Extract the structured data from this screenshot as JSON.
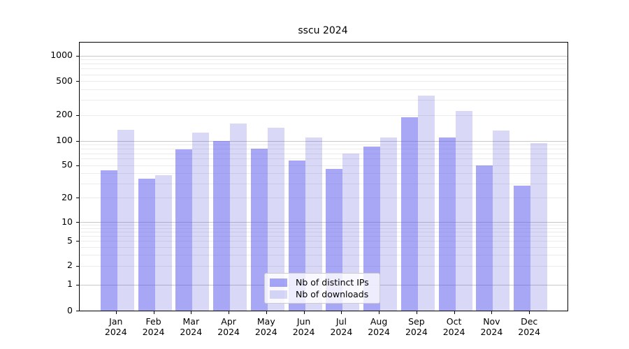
{
  "chart_data": {
    "type": "bar",
    "title": "sscu 2024",
    "categories": [
      "Jan",
      "Feb",
      "Mar",
      "Apr",
      "May",
      "Jun",
      "Jul",
      "Aug",
      "Sep",
      "Oct",
      "Nov",
      "Dec"
    ],
    "category_year": "2024",
    "series": [
      {
        "name": "Nb of distinct IPs",
        "color": "#4f4fed",
        "fill_opacity": 0.5,
        "values": [
          43,
          34,
          78,
          100,
          80,
          57,
          45,
          84,
          190,
          110,
          50,
          28
        ]
      },
      {
        "name": "Nb of downloads",
        "color": "#4141d7",
        "fill_opacity": 0.2,
        "values": [
          133,
          38,
          125,
          158,
          141,
          110,
          69,
          110,
          340,
          222,
          131,
          94
        ]
      }
    ],
    "y_axis": {
      "scale": "symlog",
      "tick_values": [
        0,
        1,
        2,
        5,
        10,
        20,
        50,
        100,
        200,
        500,
        1000
      ],
      "tick_labels": [
        "0",
        "1",
        "2",
        "5",
        "10",
        "20",
        "50",
        "100",
        "200",
        "500",
        "1000"
      ]
    },
    "x_axis": {
      "label_format": "month over year"
    },
    "grid": {
      "enabled": true,
      "major_at": [
        1,
        10,
        100,
        1000
      ],
      "major_color": "#c8c8c8",
      "minor_color": "#ececec"
    },
    "legend": {
      "position": "lower center"
    }
  }
}
